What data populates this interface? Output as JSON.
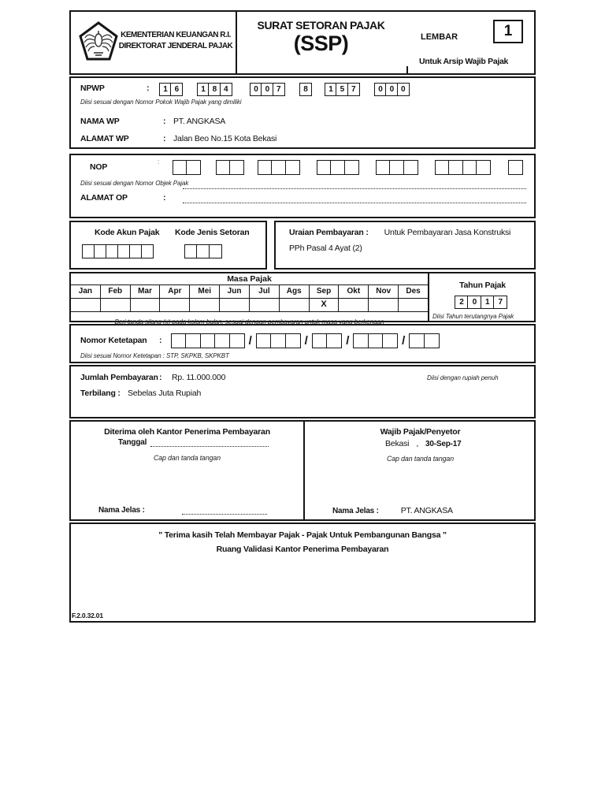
{
  "punct": {
    "colon": ":",
    "comma": ","
  },
  "header": {
    "ministry_line1": "KEMENTERIAN KEUANGAN R.I.",
    "ministry_line2": "DIREKTORAT JENDERAL PAJAK",
    "form_title": "SURAT SETORAN PAJAK",
    "form_abbr": "(SSP)",
    "lembar_label": "LEMBAR",
    "lembar_number": "1",
    "copy_note": "Untuk Arsip Wajib Pajak"
  },
  "npwp": {
    "label": "NPWP",
    "groups": [
      [
        "1",
        "6"
      ],
      [
        "1",
        "8",
        "4"
      ],
      [
        "0",
        "0",
        "7"
      ],
      [
        "8"
      ],
      [
        "1",
        "5",
        "7"
      ],
      [
        "0",
        "0",
        "0"
      ]
    ],
    "hint": "Diisi sesuai dengan Nomor Pokok Wajib Pajak  yang dimiliki",
    "nama_label": "NAMA WP",
    "nama_value": "PT. ANGKASA",
    "alamat_label": "ALAMAT WP",
    "alamat_value": "Jalan Beo No.15 Kota Bekasi"
  },
  "nop": {
    "label": "NOP",
    "group_sizes": [
      2,
      2,
      3,
      3,
      3,
      4,
      1
    ],
    "hint": "Diisi sesuai dengan Nomor Objek Pajak",
    "alamat_label": "ALAMAT OP"
  },
  "kode": {
    "akun_label": "Kode Akun Pajak",
    "akun_box_count": 6,
    "jenis_label": "Kode Jenis Setoran",
    "jenis_box_count": 3,
    "uraian_label": "Uraian Pembayaran :",
    "uraian_value_line1": "Untuk Pembayaran Jasa Konstruksi",
    "uraian_value_line2": "PPh Pasal 4 Ayat (2)"
  },
  "masa": {
    "title": "Masa Pajak",
    "months": [
      "Jan",
      "Feb",
      "Mar",
      "Apr",
      "Mei",
      "Jun",
      "Jul",
      "Ags",
      "Sep",
      "Okt",
      "Nov",
      "Des"
    ],
    "marked_month": "Sep",
    "mark": "X",
    "note": "Beri tanda silang (x) pada kolom bulan, sesuai dengan pembayaran untuk masa yang berkenaan",
    "tahun_title": "Tahun Pajak",
    "tahun_digits": [
      "2",
      "0",
      "1",
      "7"
    ],
    "tahun_note": "Diisi Tahun terutangnya Pajak"
  },
  "ketetapan": {
    "label": "Nomor Ketetapan",
    "group_sizes": [
      5,
      3,
      2,
      3,
      2
    ],
    "separator": "/",
    "hint": "Diisi sesuai Nomor Ketetapan : STP, SKPKB, SKPKBT"
  },
  "jumlah": {
    "label": "Jumlah Pembayaran",
    "value": "Rp. 11.000.000",
    "hint": "Diisi dengan rupiah penuh",
    "terbilang_label": "Terbilang :",
    "terbilang_value": "Sebelas Juta Rupiah"
  },
  "signatures": {
    "left_title": "Diterima oleh Kantor Penerima Pembayaran",
    "tanggal_label": "Tanggal",
    "cap_note": "Cap dan tanda tangan",
    "nama_jelas_label": "Nama Jelas :",
    "right_title": "Wajib Pajak/Penyetor",
    "place": "Bekasi",
    "date": "30-Sep-17",
    "right_nama_value": "PT. ANGKASA"
  },
  "footer": {
    "thanks": "\" Terima kasih Telah Membayar Pajak - Pajak Untuk Pembangunan Bangsa \"",
    "validation_title": "Ruang Validasi Kantor Penerima Pembayaran",
    "form_code": "F.2.0.32.01"
  }
}
